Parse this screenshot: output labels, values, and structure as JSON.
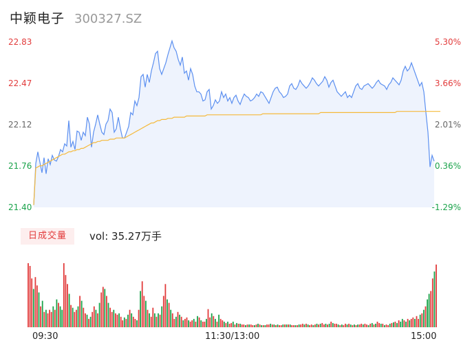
{
  "header": {
    "name": "中颖电子",
    "code": "300327.SZ"
  },
  "volume_panel": {
    "badge": "日成交量",
    "label": "vol: 35.27万手"
  },
  "colors": {
    "price_line": "#5b8ff0",
    "avg_line": "#f5b93a",
    "up": "#e23b3b",
    "down": "#1aa34a",
    "area": "#eef3fd"
  },
  "chart_data": [
    {
      "type": "line",
      "title": "",
      "y_ticks": [
        "22.83",
        "22.47",
        "22.12",
        "21.76",
        "21.40"
      ],
      "y_tick_colors": [
        "#e23b3b",
        "#e23b3b",
        "#666666",
        "#1aa34a",
        "#1aa34a"
      ],
      "y2_ticks": [
        "5.30%",
        "3.66%",
        "2.01%",
        "0.36%",
        "-1.29%"
      ],
      "y2_tick_colors": [
        "#e23b3b",
        "#e23b3b",
        "#666666",
        "#1aa34a",
        "#1aa34a"
      ],
      "ylim": [
        21.4,
        22.83
      ],
      "x_ticks": [
        "09:30",
        "11:30/13:00",
        "15:00"
      ],
      "grid": false,
      "series": [
        {
          "key": "price",
          "values": [
            21.42,
            21.78,
            21.88,
            21.79,
            21.7,
            21.83,
            21.69,
            21.82,
            21.77,
            21.85,
            21.81,
            21.8,
            21.84,
            21.9,
            21.88,
            21.95,
            21.93,
            22.15,
            21.92,
            21.97,
            21.9,
            22.06,
            22.05,
            21.98,
            22.05,
            22.02,
            22.18,
            22.12,
            21.92,
            22.05,
            22.12,
            22.2,
            22.12,
            22.05,
            22.03,
            22.12,
            22.15,
            22.25,
            22.22,
            22.05,
            22.08,
            22.18,
            22.08,
            22.0,
            22.0,
            22.05,
            22.1,
            22.22,
            22.2,
            22.32,
            22.28,
            22.35,
            22.53,
            22.55,
            22.44,
            22.55,
            22.48,
            22.58,
            22.65,
            22.73,
            22.75,
            22.6,
            22.55,
            22.6,
            22.65,
            22.72,
            22.78,
            22.84,
            22.78,
            22.75,
            22.68,
            22.63,
            22.7,
            22.56,
            22.58,
            22.5,
            22.6,
            22.55,
            22.45,
            22.4,
            22.4,
            22.38,
            22.32,
            22.33,
            22.4,
            22.42,
            22.25,
            22.28,
            22.33,
            22.3,
            22.32,
            22.4,
            22.35,
            22.38,
            22.32,
            22.35,
            22.3,
            22.35,
            22.37,
            22.32,
            22.29,
            22.34,
            22.38,
            22.36,
            22.35,
            22.32,
            22.33,
            22.35,
            22.38,
            22.36,
            22.4,
            22.39,
            22.36,
            22.33,
            22.3,
            22.35,
            22.4,
            22.43,
            22.44,
            22.4,
            22.38,
            22.35,
            22.36,
            22.38,
            22.45,
            22.47,
            22.43,
            22.42,
            22.45,
            22.5,
            22.47,
            22.45,
            22.43,
            22.45,
            22.48,
            22.52,
            22.5,
            22.47,
            22.45,
            22.47,
            22.49,
            22.53,
            22.5,
            22.44,
            22.48,
            22.5,
            22.45,
            22.4,
            22.38,
            22.36,
            22.38,
            22.4,
            22.35,
            22.37,
            22.35,
            22.4,
            22.45,
            22.47,
            22.43,
            22.42,
            22.45,
            22.46,
            22.47,
            22.45,
            22.43,
            22.45,
            22.48,
            22.5,
            22.47,
            22.46,
            22.45,
            22.42,
            22.46,
            22.48,
            22.52,
            22.5,
            22.48,
            22.46,
            22.5,
            22.58,
            22.62,
            22.58,
            22.6,
            22.65,
            22.6,
            22.55,
            22.5,
            22.45,
            22.48,
            22.4,
            22.22,
            22.05,
            21.75,
            21.85,
            21.8
          ],
          "color_key": "price_line"
        },
        {
          "key": "avg",
          "values": [
            21.42,
            21.74,
            21.75,
            21.76,
            21.76,
            21.77,
            21.78,
            21.79,
            21.8,
            21.81,
            21.82,
            21.83,
            21.84,
            21.85,
            21.86,
            21.86,
            21.87,
            21.88,
            21.88,
            21.89,
            21.89,
            21.9,
            21.9,
            21.91,
            21.91,
            21.92,
            21.93,
            21.94,
            21.95,
            21.96,
            21.96,
            21.97,
            21.97,
            21.98,
            21.98,
            21.98,
            21.98,
            21.99,
            21.99,
            21.99,
            22.0,
            22.0,
            22.0,
            22.0,
            22.0,
            22.01,
            22.02,
            22.03,
            22.04,
            22.05,
            22.06,
            22.07,
            22.08,
            22.09,
            22.1,
            22.11,
            22.12,
            22.13,
            22.13,
            22.14,
            22.15,
            22.15,
            22.16,
            22.16,
            22.16,
            22.17,
            22.17,
            22.17,
            22.18,
            22.18,
            22.18,
            22.18,
            22.18,
            22.18,
            22.19,
            22.19,
            22.19,
            22.19,
            22.19,
            22.19,
            22.19,
            22.19,
            22.19,
            22.19,
            22.2,
            22.2,
            22.2,
            22.2,
            22.2,
            22.2,
            22.2,
            22.2,
            22.2,
            22.2,
            22.2,
            22.2,
            22.2,
            22.2,
            22.2,
            22.2,
            22.2,
            22.2,
            22.2,
            22.2,
            22.2,
            22.2,
            22.2,
            22.2,
            22.2,
            22.2,
            22.2,
            22.21,
            22.21,
            22.21,
            22.21,
            22.21,
            22.21,
            22.21,
            22.21,
            22.21,
            22.21,
            22.21,
            22.21,
            22.21,
            22.21,
            22.21,
            22.21,
            22.21,
            22.21,
            22.21,
            22.21,
            22.21,
            22.21,
            22.21,
            22.21,
            22.21,
            22.21,
            22.21,
            22.21,
            22.22,
            22.22,
            22.22,
            22.22,
            22.22,
            22.22,
            22.22,
            22.22,
            22.22,
            22.22,
            22.22,
            22.22,
            22.22,
            22.22,
            22.22,
            22.22,
            22.22,
            22.22,
            22.22,
            22.22,
            22.22,
            22.22,
            22.22,
            22.22,
            22.22,
            22.22,
            22.22,
            22.22,
            22.22,
            22.22,
            22.22,
            22.22,
            22.22,
            22.22,
            22.22,
            22.22,
            22.22,
            22.23,
            22.23,
            22.23,
            22.23,
            22.23,
            22.23,
            22.23,
            22.23,
            22.23,
            22.23,
            22.23,
            22.23,
            22.23,
            22.23,
            22.23,
            22.23,
            22.23,
            22.23,
            22.23,
            22.23,
            22.23,
            22.23
          ],
          "color_key": "avg_line"
        }
      ]
    },
    {
      "type": "bar",
      "title": "",
      "x_ticks": [
        "09:30",
        "11:30/13:00",
        "15:00"
      ],
      "values": [
        92,
        88,
        70,
        55,
        72,
        60,
        50,
        30,
        38,
        22,
        25,
        20,
        25,
        22,
        30,
        25,
        40,
        35,
        30,
        25,
        92,
        75,
        62,
        48,
        32,
        28,
        22,
        25,
        30,
        45,
        38,
        28,
        20,
        18,
        12,
        15,
        22,
        30,
        25,
        20,
        35,
        50,
        58,
        55,
        45,
        35,
        28,
        22,
        25,
        20,
        18,
        20,
        15,
        10,
        14,
        12,
        18,
        25,
        20,
        15,
        12,
        10,
        25,
        52,
        66,
        45,
        38,
        25,
        20,
        15,
        28,
        20,
        15,
        20,
        18,
        30,
        45,
        62,
        40,
        35,
        25,
        20,
        12,
        15,
        22,
        18,
        15,
        10,
        12,
        14,
        10,
        8,
        10,
        12,
        8,
        16,
        14,
        10,
        8,
        8,
        12,
        26,
        14,
        20,
        16,
        12,
        8,
        18,
        12,
        10,
        8,
        6,
        8,
        5,
        6,
        8,
        4,
        6,
        5,
        5,
        4,
        4,
        3,
        4,
        4,
        4,
        3,
        3,
        4,
        5,
        4,
        3,
        3,
        3,
        4,
        4,
        5,
        4,
        4,
        3,
        4,
        3,
        3,
        4,
        4,
        4,
        4,
        4,
        3,
        3,
        3,
        3,
        4,
        4,
        5,
        4,
        5,
        4,
        3,
        4,
        3,
        4,
        5,
        4,
        5,
        6,
        4,
        5,
        4,
        5,
        8,
        6,
        5,
        5,
        4,
        3,
        4,
        3,
        5,
        4,
        5,
        4,
        3,
        4,
        3,
        4,
        4,
        5,
        4,
        5,
        4,
        3,
        5,
        6,
        4,
        5,
        8,
        6,
        5,
        5,
        3,
        4,
        3,
        5,
        6,
        7,
        8,
        6,
        10,
        8,
        12,
        10,
        8,
        12,
        10,
        12,
        14,
        12,
        16,
        12,
        18,
        20,
        25,
        30,
        40,
        48,
        52,
        70,
        80,
        90
      ],
      "directions": "rrrgrrgrgrgrrrgrgrggrrrgrgrrgrgrrgrgrrgrgrrgrgrrgrrgrrgrgrgrrgrgrrgrgrrgrgrgrrgrgrrgrgrgrrgrrgrgrgrrgrrgrgrgrrgrgrrgrgrgrrgrgrrgrgrgrgrrgrgrgrrgrgrgrrgrgrrgrgrrgrgrgrrgrgrgrrgrgrrgrgrgrgrrgrrgrgrgrrgrgrrgrgrgrggrgrgrrgrrgrgrggrrgrgg"
    }
  ]
}
